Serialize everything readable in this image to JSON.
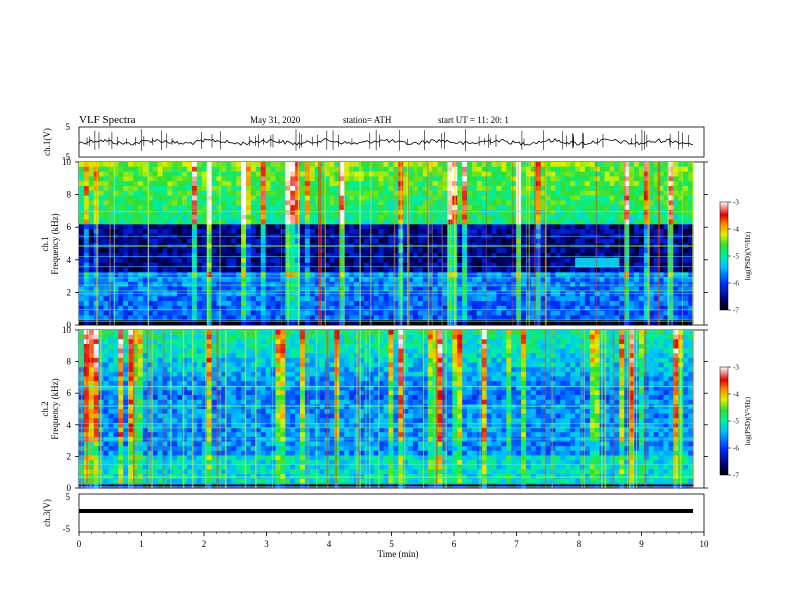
{
  "header": {
    "title": "VLF  Spectra",
    "date": "May 31, 2020",
    "station": "station= ATH",
    "start_time": "start  UT  =    11: 20: 1"
  },
  "chart_data": [
    {
      "type": "line",
      "name": "ch1-waveform",
      "ylabel": "ch.1(V)",
      "ylim": [
        -5,
        5
      ],
      "yticks": [
        "5",
        "-5"
      ],
      "xlim": [
        0,
        10
      ]
    },
    {
      "type": "heatmap",
      "name": "ch1-spectrogram",
      "ylabel_line1": "ch.1",
      "ylabel_line2": "Frequency  (kHz)",
      "ylim": [
        0,
        10
      ],
      "yticks": [
        "0",
        "2",
        "4",
        "6",
        "8",
        "10"
      ],
      "xlim": [
        0,
        10
      ],
      "colorbar": {
        "label": "log(PSD)(V²/Hz)",
        "ticks": [
          "-3",
          "-4",
          "-5",
          "-6",
          "-7"
        ],
        "range": [
          -7,
          -3
        ]
      }
    },
    {
      "type": "heatmap",
      "name": "ch2-spectrogram",
      "ylabel_line1": "ch.2",
      "ylabel_line2": "Frequency  (kHz)",
      "ylim": [
        0,
        10
      ],
      "yticks": [
        "0",
        "2",
        "4",
        "6",
        "8",
        "10"
      ],
      "xlim": [
        0,
        10
      ],
      "colorbar": {
        "label": "log(PSD)(V²/Hz)",
        "ticks": [
          "-3",
          "-4",
          "-5",
          "-6",
          "-7"
        ],
        "range": [
          -7,
          -3
        ]
      }
    },
    {
      "type": "line",
      "name": "ch3-waveform",
      "ylabel": "ch.3(V)",
      "ylim": [
        -5,
        5
      ],
      "yticks": [
        "5",
        "-5"
      ],
      "xlim": [
        0,
        10
      ],
      "xlabel": "Time  (min)",
      "xticks": [
        "0",
        "1",
        "2",
        "3",
        "4",
        "5",
        "6",
        "7",
        "8",
        "9",
        "10"
      ]
    }
  ]
}
